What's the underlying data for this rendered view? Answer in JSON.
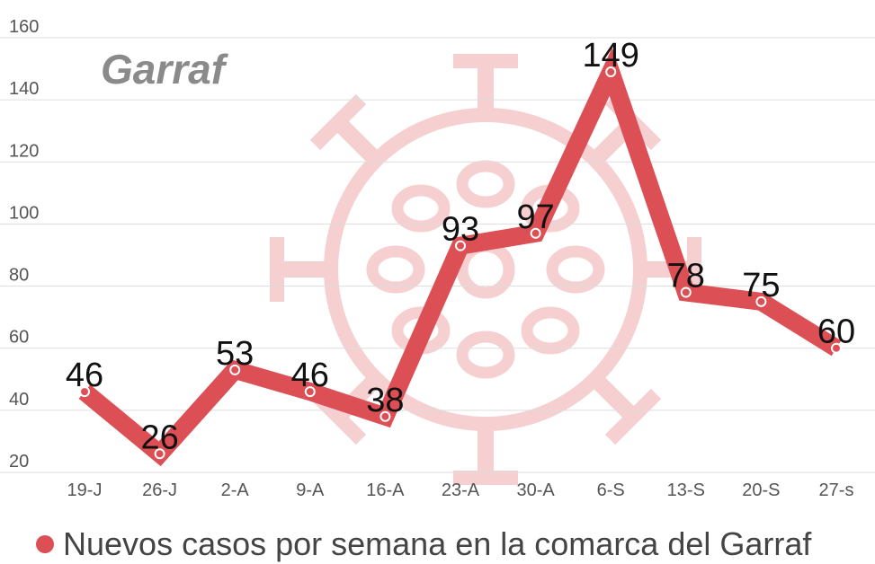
{
  "panel_title": "Garraf",
  "colors": {
    "line": "#dc4f55",
    "watermark": "#f6cfd0",
    "grid": "#dddddd"
  },
  "chart_data": {
    "type": "line",
    "title": "Garraf",
    "categories": [
      "19-J",
      "26-J",
      "2-A",
      "9-A",
      "16-A",
      "23-A",
      "30-A",
      "6-S",
      "13-S",
      "20-S",
      "27-s"
    ],
    "series": [
      {
        "name": "Nuevos casos por semana en la comarca del Garraf",
        "values": [
          46,
          26,
          53,
          46,
          38,
          93,
          97,
          149,
          78,
          75,
          60
        ]
      }
    ],
    "ylim": [
      20,
      160
    ],
    "yticks": [
      20,
      40,
      60,
      80,
      100,
      120,
      140,
      160
    ],
    "grid": true,
    "legend": "bottom"
  }
}
